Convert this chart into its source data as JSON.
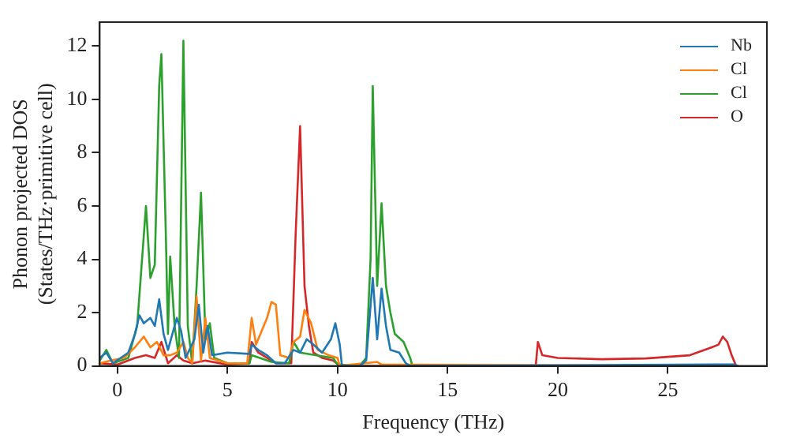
{
  "chart_data": {
    "type": "line",
    "xlabel": "Frequency (THz)",
    "ylabel": "Phonon projected DOS\n(States/THz·primitive cell)",
    "xlim": [
      -0.8,
      29.5
    ],
    "ylim": [
      0,
      12.9
    ],
    "xticks": [
      0,
      5,
      10,
      15,
      20,
      25
    ],
    "yticks": [
      0,
      2,
      4,
      6,
      8,
      10,
      12
    ],
    "grid": false,
    "legend": "top right",
    "marker": "none",
    "line_style": "solid",
    "series": [
      {
        "name": "Nb",
        "color": "#1f77b4",
        "x": [
          -0.8,
          -0.5,
          -0.2,
          0.5,
          0.8,
          1.0,
          1.2,
          1.5,
          1.7,
          1.9,
          2.1,
          2.3,
          2.5,
          2.7,
          2.9,
          3.1,
          3.5,
          3.7,
          3.9,
          4.1,
          4.3,
          5,
          6.0,
          6.1,
          6.4,
          6.8,
          7.2,
          7.6,
          8.0,
          8.3,
          8.6,
          8.9,
          9.3,
          9.7,
          9.9,
          10.1,
          10.2,
          11,
          11.3,
          11.6,
          11.8,
          12.0,
          12.2,
          12.4,
          12.8,
          13.1,
          13.3,
          27,
          28,
          28.2
        ],
        "values": [
          0.3,
          0.5,
          0.1,
          0.5,
          1.2,
          1.9,
          1.6,
          1.8,
          1.5,
          2.5,
          1.2,
          0.6,
          1.2,
          1.8,
          1.3,
          0.3,
          1,
          2.3,
          0.5,
          1.5,
          0.4,
          0.5,
          0.45,
          0.8,
          0.6,
          0.4,
          0.1,
          0.1,
          0.6,
          0.5,
          1.0,
          0.8,
          0.5,
          1.0,
          1.6,
          0.8,
          0,
          0,
          0.2,
          3.3,
          1.0,
          2.9,
          1.5,
          0.6,
          0.5,
          0.1,
          0,
          0.05,
          0.05,
          0
        ]
      },
      {
        "name": "Cl",
        "color": "#ff7f0e",
        "x": [
          -0.8,
          -0.3,
          0.3,
          0.8,
          1.2,
          1.5,
          1.8,
          2.1,
          2.4,
          2.7,
          3.0,
          3.2,
          3.4,
          3.6,
          3.8,
          4.0,
          4.2,
          5,
          5.9,
          6.1,
          6.3,
          6.8,
          7.0,
          7.2,
          7.4,
          7.8,
          8.0,
          8.3,
          8.5,
          8.8,
          9.1,
          9.6,
          10.0,
          10.1,
          11.8,
          12,
          28
        ],
        "values": [
          0.1,
          0.2,
          0.3,
          0.7,
          1.1,
          0.7,
          0.9,
          0.4,
          0.4,
          0.5,
          0.9,
          0.3,
          0.1,
          2.6,
          0.2,
          1.8,
          0.3,
          0.1,
          0.1,
          1.8,
          0.8,
          1.8,
          2.4,
          2.3,
          0.4,
          0.3,
          0.9,
          1.1,
          2.1,
          1.6,
          0.6,
          0.4,
          0.3,
          0,
          0.15,
          0.05,
          0
        ]
      },
      {
        "name": "Cl",
        "color": "#2ca02c",
        "x": [
          -0.8,
          -0.5,
          -0.2,
          0.5,
          0.9,
          1.3,
          1.5,
          1.7,
          1.9,
          2.0,
          2.2,
          2.3,
          2.4,
          2.6,
          2.8,
          3.0,
          3.2,
          3.4,
          3.6,
          3.8,
          4.0,
          4.2,
          4.4,
          5,
          6.0,
          6.1,
          7,
          7.8,
          8.0,
          8.3,
          9,
          9.8,
          10.0,
          11.0,
          11.3,
          11.5,
          11.6,
          11.8,
          12.0,
          12.2,
          12.4,
          12.6,
          13.0,
          13.3,
          13.4,
          19,
          28
        ],
        "values": [
          0.2,
          0.6,
          0.1,
          0.3,
          1.5,
          6.0,
          3.3,
          3.8,
          10.5,
          11.7,
          5,
          1.2,
          4.1,
          1.5,
          0.3,
          12.2,
          1.5,
          0.1,
          3.0,
          6.5,
          1,
          1.6,
          0.3,
          0.1,
          0.1,
          0.4,
          0.15,
          0.1,
          0.9,
          0.5,
          0.4,
          0.3,
          0.05,
          0,
          0.3,
          4,
          10.5,
          3,
          6.1,
          3,
          2,
          1.2,
          0.9,
          0.3,
          0,
          0,
          0
        ]
      },
      {
        "name": "O",
        "color": "#d62728",
        "x": [
          -0.8,
          0,
          0.8,
          1.3,
          1.7,
          2.0,
          2.3,
          2.7,
          3.0,
          3.4,
          4.0,
          5,
          6.0,
          6.1,
          6.4,
          7.2,
          7.9,
          8.1,
          8.3,
          8.5,
          8.7,
          8.9,
          9.3,
          9.8,
          10.1,
          19,
          19.1,
          19.3,
          20,
          22,
          24,
          26,
          27,
          27.3,
          27.5,
          27.7,
          27.9,
          28.1
        ],
        "values": [
          0.1,
          0.05,
          0.3,
          0.4,
          0.3,
          0.9,
          0.1,
          0.4,
          0.2,
          0.1,
          0.2,
          0.05,
          0.1,
          0.9,
          0.5,
          0.1,
          0.1,
          5,
          9.0,
          3,
          1.5,
          0.5,
          0.3,
          0.2,
          0,
          0,
          0.9,
          0.4,
          0.3,
          0.25,
          0.28,
          0.4,
          0.7,
          0.8,
          1.1,
          0.9,
          0.4,
          0
        ]
      }
    ]
  }
}
